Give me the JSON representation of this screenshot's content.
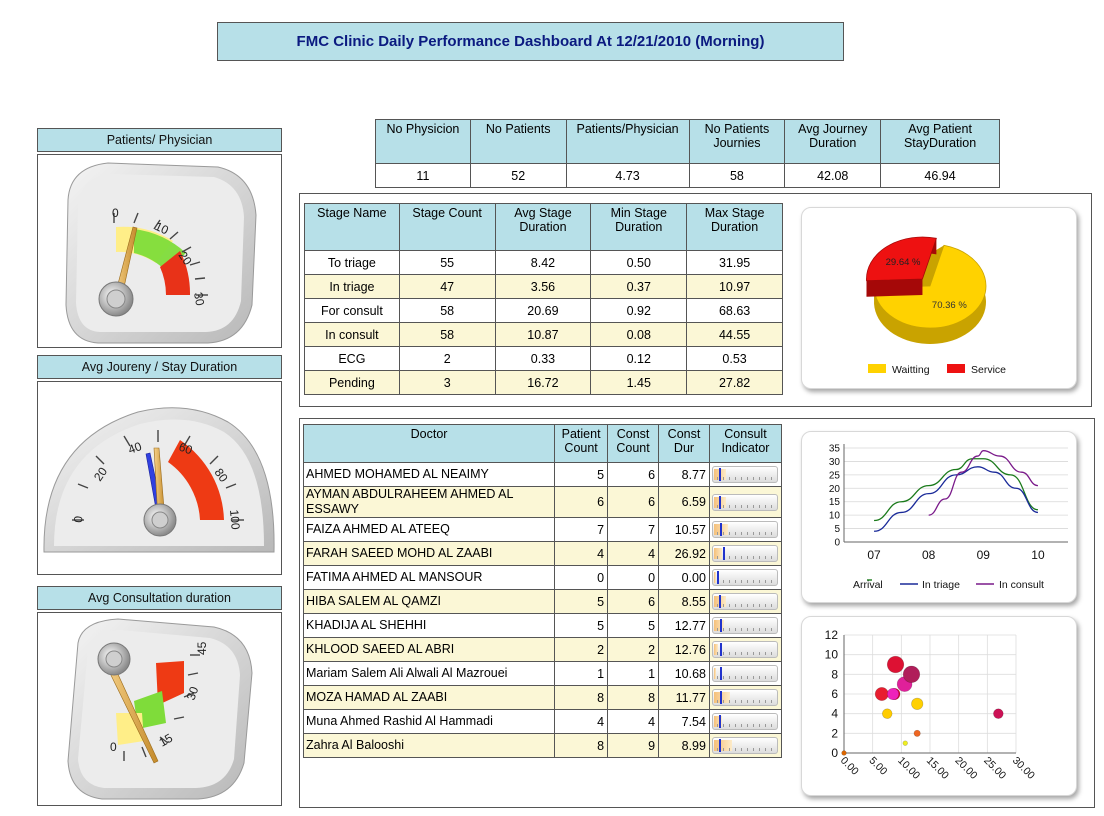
{
  "title": "FMC Clinic Daily Performance Dashboard At 12/21/2010 (Morning)",
  "gauges": [
    {
      "label": "Patients/ Physician",
      "value": 4.73,
      "scale": [
        "0",
        "10",
        "20",
        "30"
      ]
    },
    {
      "label": "Avg Joureny / Stay Duration",
      "values": [
        42.08,
        46.94
      ],
      "scale": [
        "0",
        "20",
        "40",
        "60",
        "80",
        "100"
      ]
    },
    {
      "label": "Avg Consultation duration",
      "value": 11.5,
      "scale": [
        "0",
        "15",
        "30",
        "45"
      ]
    }
  ],
  "summary": {
    "headers": [
      "No Physicion",
      "No Patients",
      "Patients/Physician",
      "No Patients Journies",
      "Avg Journey Duration",
      "Avg Patient StayDuration"
    ],
    "values": [
      "11",
      "52",
      "4.73",
      "58",
      "42.08",
      "46.94"
    ]
  },
  "stages": {
    "headers": [
      "Stage Name",
      "Stage Count",
      "Avg Stage Duration",
      "Min Stage Duration",
      "Max Stage Duration"
    ],
    "rows": [
      [
        "To triage",
        "55",
        "8.42",
        "0.50",
        "31.95"
      ],
      [
        "In triage",
        "47",
        "3.56",
        "0.37",
        "10.97"
      ],
      [
        "For consult",
        "58",
        "20.69",
        "0.92",
        "68.63"
      ],
      [
        "In consult",
        "58",
        "10.87",
        "0.08",
        "44.55"
      ],
      [
        "ECG",
        "2",
        "0.33",
        "0.12",
        "0.53"
      ],
      [
        "Pending",
        "3",
        "16.72",
        "1.45",
        "27.82"
      ]
    ]
  },
  "doctors": {
    "headers": [
      "Doctor",
      "Patient Count",
      "Const Count",
      "Const Dur",
      "Consult Indicator"
    ],
    "rows": [
      [
        "AHMED MOHAMED AL NEAIMY",
        "5",
        "6",
        "8.77"
      ],
      [
        "AYMAN ABDULRAHEEM AHMED AL ESSAWY",
        "6",
        "6",
        "6.59"
      ],
      [
        "FAIZA AHMED AL ATEEQ",
        "7",
        "7",
        "10.57"
      ],
      [
        "FARAH SAEED MOHD AL ZAABI",
        "4",
        "4",
        "26.92"
      ],
      [
        "FATIMA AHMED AL MANSOUR",
        "0",
        "0",
        "0.00"
      ],
      [
        "HIBA SALEM AL QAMZI",
        "5",
        "6",
        "8.55"
      ],
      [
        "KHADIJA AL SHEHHI",
        "5",
        "5",
        "12.77"
      ],
      [
        "KHLOOD SAEED AL ABRI",
        "2",
        "2",
        "12.76"
      ],
      [
        "Mariam Salem Ali Alwali Al Mazrouei",
        "1",
        "1",
        "10.68"
      ],
      [
        "MOZA HAMAD AL ZAABI",
        "8",
        "8",
        "11.77"
      ],
      [
        "Muna Ahmed Rashid Al Hammadi",
        "4",
        "4",
        "7.54"
      ],
      [
        "Zahra Al Balooshi",
        "8",
        "9",
        "8.99"
      ]
    ]
  },
  "chart_data": [
    {
      "type": "pie",
      "labels": [
        "Waitting",
        "Service"
      ],
      "values": [
        70.36,
        29.64
      ],
      "slice_labels": [
        "70.36 %",
        "29.64 %"
      ],
      "colors": [
        "#ffd200",
        "#ee1111"
      ],
      "legend": "bottom"
    },
    {
      "type": "line",
      "x": [
        "07",
        "08",
        "09",
        "10"
      ],
      "ylim": [
        0,
        35
      ],
      "yticks": [
        "0",
        "5",
        "10",
        "15",
        "20",
        "25",
        "30",
        "35"
      ],
      "legend": "bottom",
      "series": [
        {
          "name": "Arrival",
          "color": "#1a7a1a",
          "points": [
            [
              7.0,
              8
            ],
            [
              7.5,
              15
            ],
            [
              8.0,
              21
            ],
            [
              8.5,
              27
            ],
            [
              8.8,
              31
            ],
            [
              9.0,
              31
            ],
            [
              9.5,
              25
            ],
            [
              10.0,
              12
            ]
          ]
        },
        {
          "name": "In triage",
          "color": "#1a2a99",
          "points": [
            [
              7.0,
              4
            ],
            [
              7.5,
              11
            ],
            [
              8.0,
              18
            ],
            [
              8.5,
              25
            ],
            [
              8.9,
              28
            ],
            [
              9.2,
              26
            ],
            [
              9.6,
              20
            ],
            [
              10.0,
              11
            ]
          ]
        },
        {
          "name": "In consult",
          "color": "#7a1a8a",
          "points": [
            [
              8.0,
              10
            ],
            [
              8.3,
              16
            ],
            [
              8.6,
              26
            ],
            [
              8.9,
              32
            ],
            [
              9.0,
              34
            ],
            [
              9.3,
              32
            ],
            [
              9.7,
              26
            ],
            [
              10.0,
              21
            ]
          ]
        }
      ]
    },
    {
      "type": "scatter",
      "xlim": [
        0,
        30
      ],
      "ylim": [
        0,
        12
      ],
      "xticks": [
        "0.00",
        "5.00",
        "10.00",
        "15.00",
        "20.00",
        "25.00",
        "30.00"
      ],
      "yticks": [
        "0",
        "2",
        "4",
        "6",
        "8",
        "10",
        "12"
      ],
      "grid": true,
      "points": [
        {
          "x": 8.77,
          "y": 6,
          "size": 5,
          "color": "#e4002b"
        },
        {
          "x": 6.59,
          "y": 6,
          "size": 6,
          "color": "#e81d2f"
        },
        {
          "x": 10.57,
          "y": 7,
          "size": 7,
          "color": "#e0209a"
        },
        {
          "x": 26.92,
          "y": 4,
          "size": 4,
          "color": "#cc1155"
        },
        {
          "x": 0.0,
          "y": 0,
          "size": 1,
          "color": "#dd6600"
        },
        {
          "x": 8.55,
          "y": 6,
          "size": 5,
          "color": "#ee22bb"
        },
        {
          "x": 12.77,
          "y": 5,
          "size": 5,
          "color": "#ffd000"
        },
        {
          "x": 12.76,
          "y": 2,
          "size": 2,
          "color": "#ee6622"
        },
        {
          "x": 10.68,
          "y": 1,
          "size": 1,
          "color": "#eeee22"
        },
        {
          "x": 11.77,
          "y": 8,
          "size": 8,
          "color": "#b01e5a"
        },
        {
          "x": 7.54,
          "y": 4,
          "size": 4,
          "color": "#ffcc00"
        },
        {
          "x": 8.99,
          "y": 9,
          "size": 8,
          "color": "#dd1133"
        }
      ]
    }
  ]
}
